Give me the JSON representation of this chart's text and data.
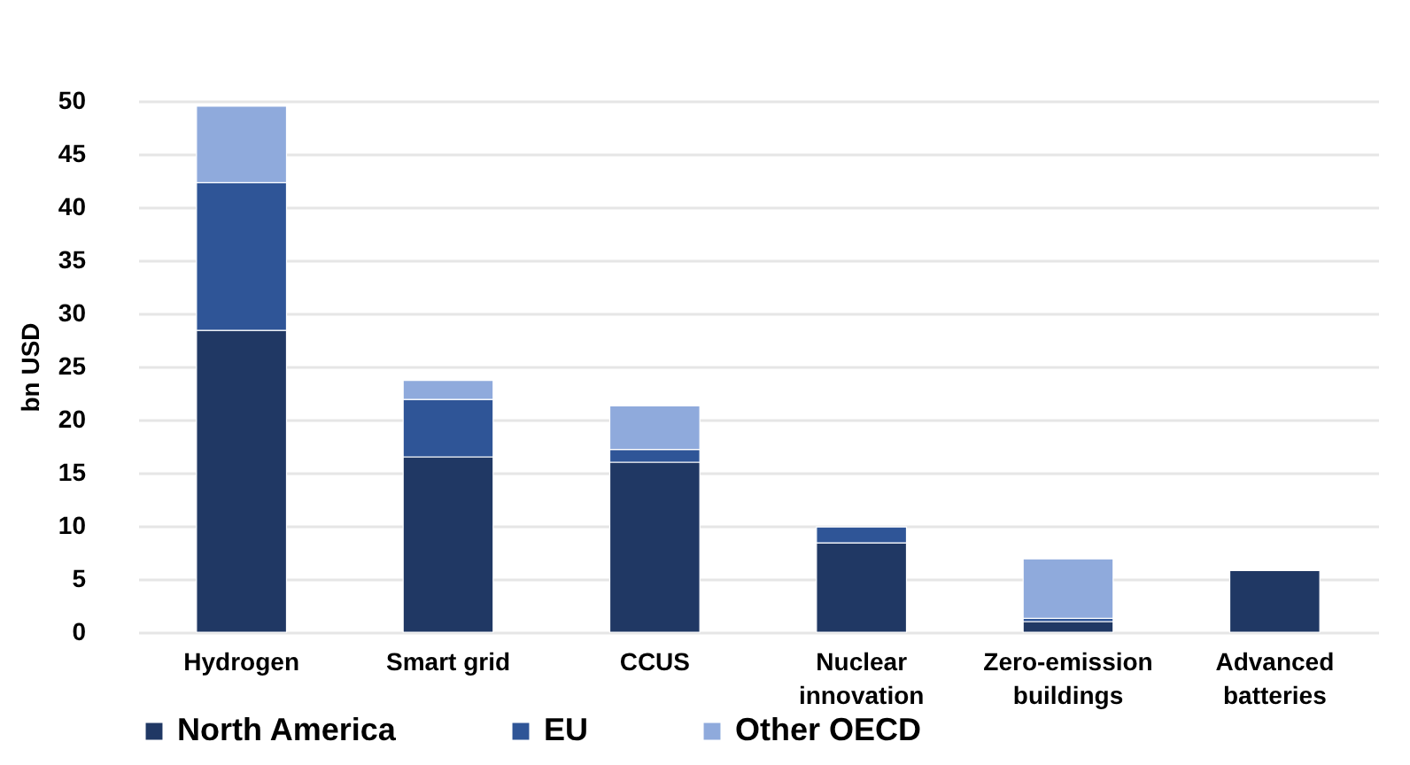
{
  "chart_data": {
    "type": "bar",
    "stacked": true,
    "ylabel": "bn USD",
    "categories": [
      "Hydrogen",
      "Smart grid",
      "CCUS",
      "Nuclear innovation",
      "Zero-emission buildings",
      "Advanced batteries"
    ],
    "series": [
      {
        "name": "North America",
        "color": "#203864",
        "values": [
          28.4,
          16.5,
          16.0,
          8.4,
          1.0,
          5.8
        ]
      },
      {
        "name": "EU",
        "color": "#2f5597",
        "values": [
          13.9,
          5.4,
          1.2,
          1.5,
          0.3,
          null
        ]
      },
      {
        "name": "Other OECD",
        "color": "#8faadc",
        "values": [
          7.2,
          1.8,
          4.1,
          null,
          5.6,
          null
        ]
      }
    ],
    "ylim": [
      0,
      50
    ],
    "yticks": [
      0,
      5,
      10,
      15,
      20,
      25,
      30,
      35,
      40,
      45,
      50
    ],
    "grid": "y",
    "legend": "bottom"
  }
}
